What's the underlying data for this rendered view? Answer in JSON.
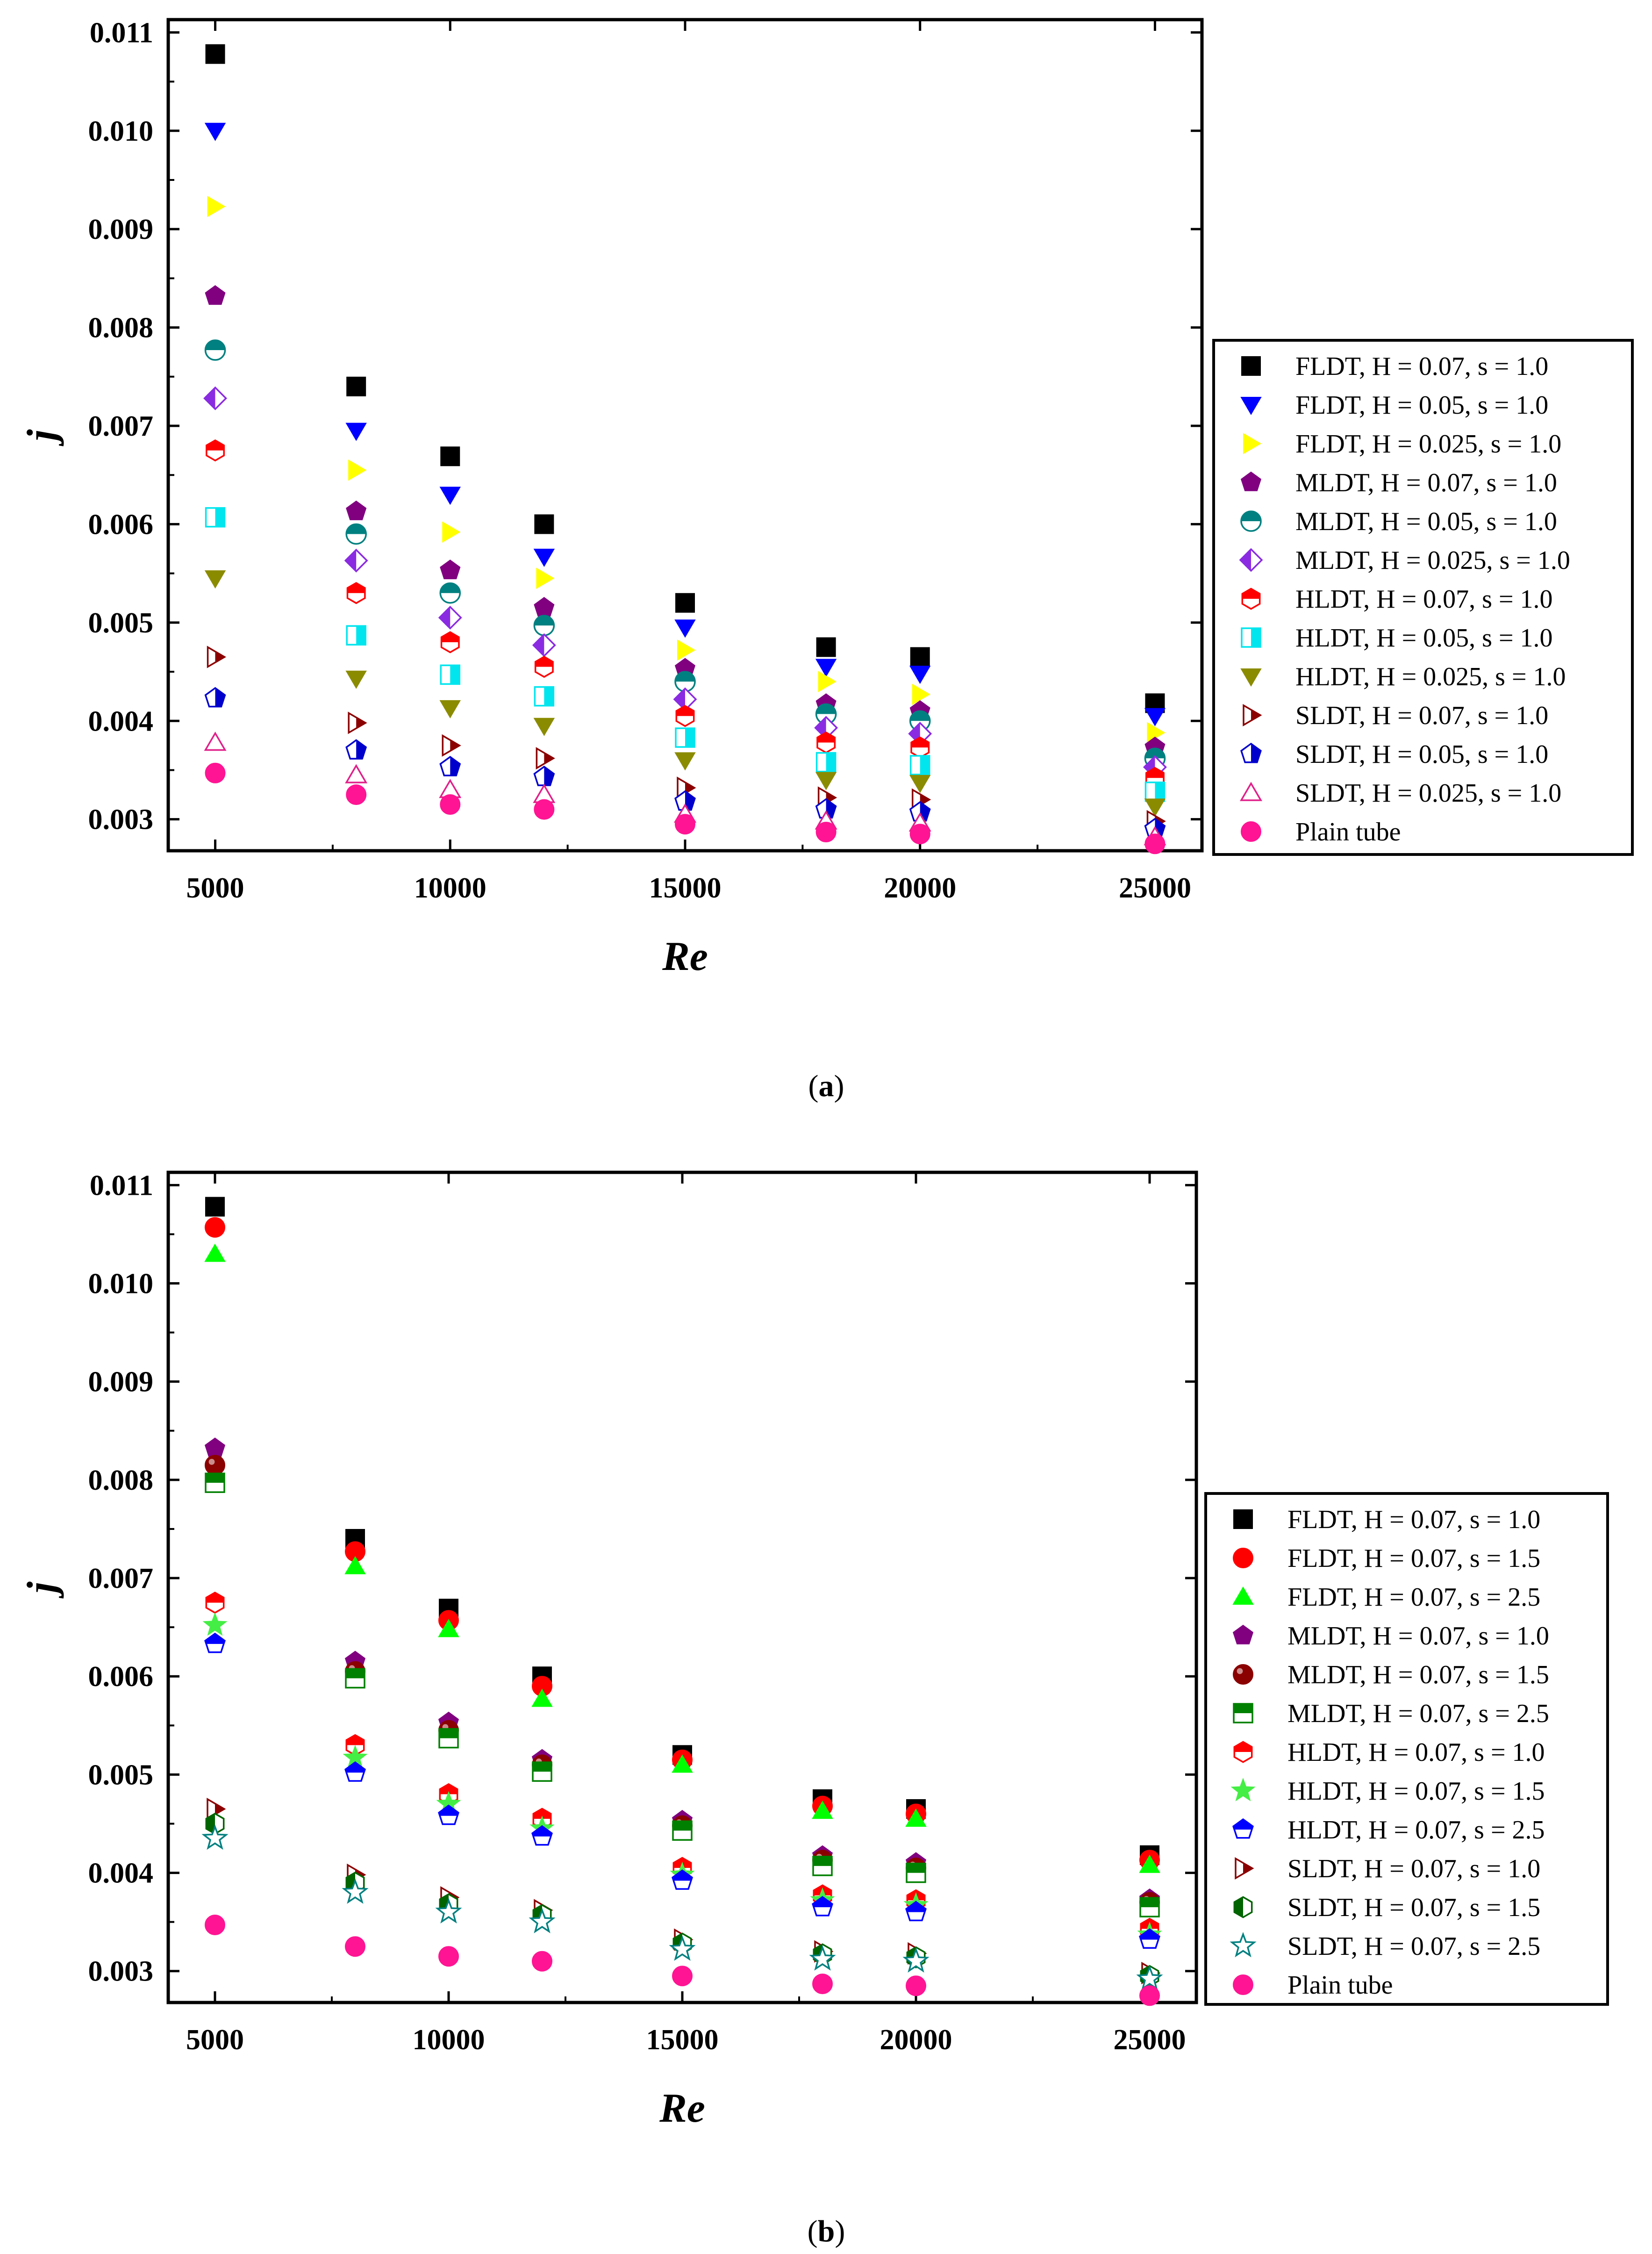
{
  "chart_data": [
    {
      "id": "a",
      "type": "scatter",
      "caption": "a",
      "xlabel": "Re",
      "ylabel": "j",
      "xlim": [
        4000,
        26000
      ],
      "ylim": [
        0.00268,
        0.01113
      ],
      "xticks": [
        5000,
        10000,
        15000,
        20000,
        25000
      ],
      "yticks": [
        0.003,
        0.004,
        0.005,
        0.006,
        0.007,
        0.008,
        0.009,
        0.01,
        0.011
      ],
      "x": [
        5000,
        8000,
        10000,
        12000,
        15000,
        18000,
        20000,
        25000
      ],
      "legend_position": "right",
      "series": [
        {
          "name": "FLDT, H = 0.07, s = 1.0",
          "marker": "square",
          "fill": "full",
          "color": "#000000",
          "values": [
            0.01078,
            0.0074,
            0.00669,
            0.006,
            0.0052,
            0.00475,
            0.00465,
            0.00418
          ]
        },
        {
          "name": "FLDT, H = 0.05, s = 1.0",
          "marker": "triangle-down",
          "fill": "full",
          "color": "#0000ff",
          "values": [
            0.01,
            0.00695,
            0.0063,
            0.00567,
            0.00495,
            0.00455,
            0.00448,
            0.00405
          ]
        },
        {
          "name": "FLDT, H = 0.025, s = 1.0",
          "marker": "triangle-right",
          "fill": "full",
          "color": "#ffff00",
          "values": [
            0.00923,
            0.00655,
            0.00592,
            0.00545,
            0.00472,
            0.0044,
            0.00427,
            0.00388
          ]
        },
        {
          "name": "MLDT, H = 0.07, s = 1.0",
          "marker": "pentagon",
          "fill": "full",
          "color": "#800080",
          "values": [
            0.00832,
            0.00613,
            0.00553,
            0.00515,
            0.00453,
            0.00417,
            0.0041,
            0.00373
          ]
        },
        {
          "name": "MLDT, H = 0.05, s = 1.0",
          "marker": "circle",
          "fill": "top",
          "color": "#008080",
          "values": [
            0.00777,
            0.0059,
            0.0053,
            0.00497,
            0.0044,
            0.00407,
            0.004,
            0.00362
          ]
        },
        {
          "name": "MLDT, H = 0.025, s = 1.0",
          "marker": "diamond",
          "fill": "left",
          "color": "#8a2be2",
          "values": [
            0.00728,
            0.00563,
            0.00505,
            0.00477,
            0.00422,
            0.00393,
            0.00387,
            0.00353
          ]
        },
        {
          "name": "HLDT, H = 0.07, s = 1.0",
          "marker": "hexagon",
          "fill": "top",
          "color": "#ff0000",
          "values": [
            0.00675,
            0.0053,
            0.0048,
            0.00455,
            0.00405,
            0.00378,
            0.00373,
            0.00342
          ]
        },
        {
          "name": "HLDT, H = 0.05, s = 1.0",
          "marker": "square",
          "fill": "right",
          "color": "#00e5ee",
          "values": [
            0.00607,
            0.00487,
            0.00447,
            0.00425,
            0.00383,
            0.00358,
            0.00355,
            0.00328
          ]
        },
        {
          "name": "HLDT, H = 0.025, s = 1.0",
          "marker": "triangle-down",
          "fill": "full",
          "color": "#8b8b00",
          "values": [
            0.00545,
            0.00443,
            0.00413,
            0.00395,
            0.0036,
            0.0034,
            0.00337,
            0.00313
          ]
        },
        {
          "name": "SLDT, H = 0.07, s = 1.0",
          "marker": "triangle-right",
          "fill": "right",
          "color": "#8b0000",
          "values": [
            0.00465,
            0.00398,
            0.00375,
            0.00362,
            0.00332,
            0.00322,
            0.0032,
            0.00298
          ]
        },
        {
          "name": "SLDT, H = 0.05, s = 1.0",
          "marker": "pentagon",
          "fill": "right",
          "color": "#0000cd",
          "values": [
            0.00423,
            0.0037,
            0.00353,
            0.00343,
            0.00318,
            0.0031,
            0.00307,
            0.0029
          ]
        },
        {
          "name": "SLDT, H = 0.025, s = 1.0",
          "marker": "triangle-up",
          "fill": "none",
          "color": "#e0218a",
          "values": [
            0.00378,
            0.00345,
            0.0033,
            0.00325,
            0.00305,
            0.00298,
            0.00296,
            0.00282
          ]
        },
        {
          "name": "Plain tube",
          "marker": "circle",
          "fill": "full",
          "color": "#ff1493",
          "values": [
            0.00347,
            0.00325,
            0.00315,
            0.0031,
            0.00295,
            0.00287,
            0.00285,
            0.00275
          ]
        }
      ]
    },
    {
      "id": "b",
      "type": "scatter",
      "caption": "b",
      "xlabel": "Re",
      "ylabel": "j",
      "xlim": [
        4000,
        26000
      ],
      "ylim": [
        0.00268,
        0.01113
      ],
      "xticks": [
        5000,
        10000,
        15000,
        20000,
        25000
      ],
      "yticks": [
        0.003,
        0.004,
        0.005,
        0.006,
        0.007,
        0.008,
        0.009,
        0.01,
        0.011
      ],
      "x": [
        5000,
        8000,
        10000,
        12000,
        15000,
        18000,
        20000,
        25000
      ],
      "legend_position": "right",
      "series": [
        {
          "name": "FLDT, H = 0.07, s = 1.0",
          "marker": "square",
          "fill": "full",
          "color": "#000000",
          "values": [
            0.01078,
            0.0074,
            0.00669,
            0.006,
            0.0052,
            0.00475,
            0.00465,
            0.00418
          ]
        },
        {
          "name": "FLDT, H = 0.07, s = 1.5",
          "marker": "circle",
          "fill": "full",
          "color": "#ff0000",
          "values": [
            0.01057,
            0.00727,
            0.00657,
            0.0059,
            0.00515,
            0.00468,
            0.0046,
            0.00413
          ]
        },
        {
          "name": "FLDT, H = 0.07, s = 2.5",
          "marker": "triangle-up",
          "fill": "full",
          "color": "#00ff00",
          "values": [
            0.0103,
            0.00712,
            0.00648,
            0.00577,
            0.0051,
            0.00463,
            0.00455,
            0.00408
          ]
        },
        {
          "name": "MLDT, H = 0.07, s = 1.0",
          "marker": "pentagon",
          "fill": "full",
          "color": "#800080",
          "values": [
            0.00832,
            0.00615,
            0.00553,
            0.00515,
            0.00453,
            0.00417,
            0.0041,
            0.00373
          ]
        },
        {
          "name": "MLDT, H = 0.07, s = 1.5",
          "marker": "circle",
          "fill": "ball",
          "color": "#8b0000",
          "values": [
            0.00815,
            0.00605,
            0.00545,
            0.0051,
            0.00448,
            0.00413,
            0.00405,
            0.0037
          ]
        },
        {
          "name": "MLDT, H = 0.07, s = 2.5",
          "marker": "square",
          "fill": "top",
          "color": "#008000",
          "values": [
            0.00797,
            0.00598,
            0.00537,
            0.00503,
            0.00443,
            0.00407,
            0.004,
            0.00365
          ]
        },
        {
          "name": "HLDT, H = 0.07, s = 1.0",
          "marker": "hexagon",
          "fill": "top",
          "color": "#ff0000",
          "values": [
            0.00675,
            0.0053,
            0.0048,
            0.00455,
            0.00405,
            0.00377,
            0.00372,
            0.00343
          ]
        },
        {
          "name": "HLDT, H = 0.07, s = 1.5",
          "marker": "star",
          "fill": "full",
          "color": "#44ee44",
          "values": [
            0.00652,
            0.00517,
            0.0047,
            0.00445,
            0.00398,
            0.00372,
            0.00367,
            0.00337
          ]
        },
        {
          "name": "HLDT, H = 0.07, s = 2.5",
          "marker": "pentagon",
          "fill": "top",
          "color": "#0000ff",
          "values": [
            0.00633,
            0.00502,
            0.00458,
            0.00437,
            0.00392,
            0.00365,
            0.0036,
            0.00332
          ]
        },
        {
          "name": "SLDT, H = 0.07, s = 1.0",
          "marker": "triangle-right",
          "fill": "right",
          "color": "#8b0000",
          "values": [
            0.00465,
            0.00398,
            0.00375,
            0.00362,
            0.00332,
            0.0032,
            0.00318,
            0.00298
          ]
        },
        {
          "name": "SLDT, H = 0.07, s = 1.5",
          "marker": "hexagon",
          "fill": "left",
          "color": "#006400",
          "values": [
            0.0045,
            0.0039,
            0.00368,
            0.00357,
            0.00328,
            0.00317,
            0.00314,
            0.00295
          ]
        },
        {
          "name": "SLDT, H = 0.07, s = 2.5",
          "marker": "star",
          "fill": "none",
          "color": "#008080",
          "values": [
            0.00435,
            0.0038,
            0.0036,
            0.0035,
            0.00322,
            0.00312,
            0.0031,
            0.00292
          ]
        },
        {
          "name": "Plain tube",
          "marker": "circle",
          "fill": "full",
          "color": "#ff1493",
          "values": [
            0.00347,
            0.00325,
            0.00315,
            0.0031,
            0.00295,
            0.00287,
            0.00285,
            0.00275
          ]
        }
      ]
    }
  ]
}
